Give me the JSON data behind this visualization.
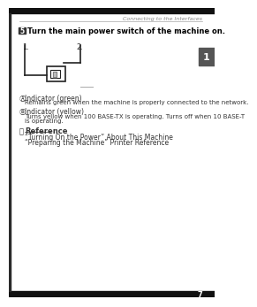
{
  "bg_color": "#ffffff",
  "header_line_color": "#aaaaaa",
  "header_text": "Connecting to the Interfaces",
  "header_text_color": "#888888",
  "step_box_text": "5",
  "step_box_bg": "#333333",
  "step_box_fg": "#ffffff",
  "step_title": "Turn the main power switch of the machine on.",
  "step_title_color": "#000000",
  "body_text_color": "#333333",
  "tab_bg": "#555555",
  "tab_fg": "#ffffff",
  "tab_text": "1",
  "page_number": "7",
  "page_num_fg": "#ffffff",
  "indicator_a_label": "Indicator (green)",
  "indicator_a_desc": "Remains green when the machine is properly connected to the network.",
  "indicator_b_label": "Indicator (yellow)",
  "indicator_b_desc": "Turns yellow when 100 BASE-TX is operating. Turns off when 10 BASE-T",
  "indicator_b_desc2": "is operating.",
  "ref_label": "Reference",
  "ref_line1": "“Turning On the Power” About This Machine",
  "ref_line2": "“Preparing the Machine” Printer Reference",
  "diagram_label1": "1.",
  "diagram_label2": "2."
}
